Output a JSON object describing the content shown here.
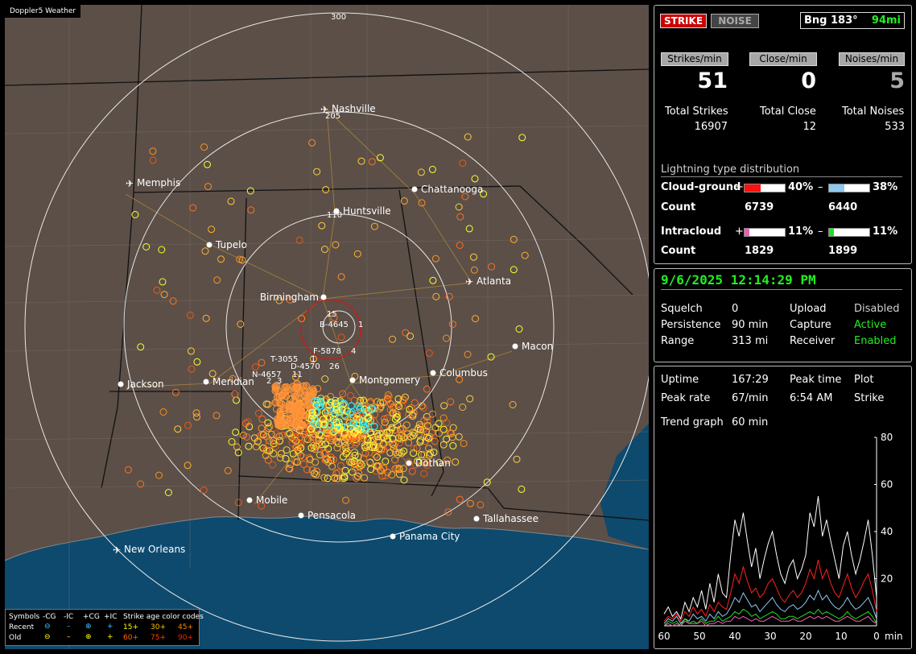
{
  "app": {
    "title": "Doppler5 Weather"
  },
  "status": {
    "strike_label": "STRIKE",
    "noise_label": "NOISE",
    "bearing": "Bng 183°",
    "distance": "94mi"
  },
  "rates": {
    "strikes_label": "Strikes/min",
    "strikes": "51",
    "close_label": "Close/min",
    "close": "0",
    "noises_label": "Noises/min",
    "noises": "5"
  },
  "totals": {
    "strikes_label": "Total Strikes",
    "strikes": "16907",
    "close_label": "Total Close",
    "close": "12",
    "noises_label": "Total Noises",
    "noises": "533"
  },
  "distribution": {
    "title": "Lightning type distribution",
    "cg_label": "Cloud-ground",
    "ic_label": "Intracloud",
    "count_label": "Count",
    "plus": "+",
    "minus": "–",
    "cg_pos_pct": "40%",
    "cg_neg_pct": "38%",
    "cg_pos_count": "6739",
    "cg_neg_count": "6440",
    "ic_pos_pct": "11%",
    "ic_neg_pct": "11%",
    "ic_pos_count": "1829",
    "ic_neg_count": "1899",
    "cg_pos_fill": 0.4,
    "cg_neg_fill": 0.38,
    "ic_pos_fill": 0.11,
    "ic_neg_fill": 0.11,
    "colors": {
      "cg_pos": "#ff1010",
      "cg_neg": "#90c8f0",
      "ic_pos": "#f060b0",
      "ic_neg": "#22dd22"
    }
  },
  "settings": {
    "datetime": "9/6/2025 12:14:29 PM",
    "squelch_label": "Squelch",
    "squelch": "0",
    "persistence_label": "Persistence",
    "persistence": "90 min",
    "range_label": "Range",
    "range": "313 mi",
    "upload_label": "Upload",
    "upload": "Disabled",
    "capture_label": "Capture",
    "capture": "Active",
    "receiver_label": "Receiver",
    "receiver": "Enabled"
  },
  "stats": {
    "uptime_label": "Uptime",
    "uptime": "167:29",
    "peak_time_label": "Peak time",
    "peak_time": "6:54 AM",
    "plot_label": "Plot",
    "plot": "Strike",
    "peak_rate_label": "Peak rate",
    "peak_rate": "67/min",
    "trend_label": "Trend graph",
    "trend": "60 min"
  },
  "map": {
    "ring_labels": [
      "300",
      "205",
      "110",
      "15"
    ],
    "cities": [
      {
        "name": "Nashville",
        "type": "airport"
      },
      {
        "name": "Memphis",
        "type": "airport"
      },
      {
        "name": "Chattanooga",
        "type": "city"
      },
      {
        "name": "Huntsville",
        "type": "city"
      },
      {
        "name": "Tupelo",
        "type": "city"
      },
      {
        "name": "Atlanta",
        "type": "airport"
      },
      {
        "name": "Birmingham",
        "type": "city"
      },
      {
        "name": "Macon",
        "type": "city"
      },
      {
        "name": "Jackson",
        "type": "city"
      },
      {
        "name": "Meridian",
        "type": "city"
      },
      {
        "name": "Montgomery",
        "type": "city"
      },
      {
        "name": "Columbus",
        "type": "city"
      },
      {
        "name": "Dothan",
        "type": "city"
      },
      {
        "name": "Mobile",
        "type": "city"
      },
      {
        "name": "Pensacola",
        "type": "city"
      },
      {
        "name": "Tallahassee",
        "type": "city"
      },
      {
        "name": "Panama City",
        "type": "city"
      },
      {
        "name": "New Orleans",
        "type": "airport"
      }
    ],
    "storms": [
      "B-4645",
      "F-5878",
      "T-3055",
      "D-4570",
      "N-4657"
    ],
    "storm_suffixes": [
      "1",
      "4",
      "1",
      "26",
      "11",
      "2",
      "3"
    ]
  },
  "legend": {
    "symbols_label": "Symbols",
    "cols": [
      "-CG",
      "-IC",
      "+CG",
      "+IC"
    ],
    "age_label": "Strike age color codes",
    "recent_label": "Recent",
    "old_label": "Old",
    "ages_recent": [
      "15+",
      "30+",
      "45+"
    ],
    "ages_old": [
      "60+",
      "75+",
      "90+"
    ],
    "age_colors": [
      "#ffff00",
      "#ffc000",
      "#ff8800",
      "#ff6a00",
      "#ff4000",
      "#ff2000"
    ]
  },
  "chart_data": {
    "type": "line",
    "x_ticks": [
      "60",
      "50",
      "40",
      "30",
      "20",
      "10",
      "0"
    ],
    "x_unit": "min",
    "y_ticks": [
      "80",
      "60",
      "40",
      "20"
    ],
    "ylim": [
      0,
      80
    ],
    "xlim": [
      60,
      0
    ],
    "series": [
      {
        "color": "#ffffff",
        "values": [
          5,
          8,
          4,
          6,
          3,
          10,
          6,
          12,
          8,
          15,
          7,
          18,
          10,
          22,
          14,
          12,
          30,
          45,
          38,
          48,
          36,
          25,
          33,
          20,
          28,
          35,
          40,
          30,
          22,
          18,
          25,
          28,
          20,
          24,
          30,
          48,
          42,
          55,
          38,
          45,
          36,
          28,
          20,
          34,
          40,
          30,
          22,
          28,
          36,
          45,
          30,
          12
        ]
      },
      {
        "color": "#ff2020",
        "values": [
          2,
          4,
          3,
          5,
          2,
          6,
          4,
          8,
          5,
          7,
          4,
          9,
          6,
          10,
          8,
          7,
          14,
          22,
          18,
          25,
          19,
          14,
          16,
          12,
          14,
          18,
          20,
          16,
          12,
          10,
          13,
          15,
          12,
          14,
          18,
          24,
          20,
          28,
          20,
          24,
          18,
          14,
          12,
          17,
          22,
          16,
          12,
          15,
          19,
          22,
          15,
          6
        ]
      },
      {
        "color": "#90c8f0",
        "values": [
          1,
          3,
          2,
          4,
          1,
          3,
          2,
          5,
          3,
          4,
          2,
          5,
          3,
          6,
          4,
          5,
          8,
          12,
          10,
          14,
          11,
          8,
          9,
          6,
          8,
          10,
          12,
          9,
          7,
          6,
          8,
          9,
          7,
          8,
          10,
          13,
          11,
          15,
          11,
          13,
          10,
          8,
          7,
          9,
          12,
          9,
          7,
          8,
          10,
          12,
          8,
          3
        ]
      },
      {
        "color": "#22dd22",
        "values": [
          0,
          2,
          1,
          2,
          0,
          3,
          1,
          2,
          1,
          3,
          1,
          2,
          2,
          4,
          2,
          3,
          4,
          6,
          5,
          7,
          6,
          4,
          5,
          3,
          4,
          5,
          6,
          5,
          3,
          3,
          4,
          4,
          3,
          4,
          5,
          6,
          5,
          7,
          5,
          6,
          5,
          4,
          3,
          4,
          6,
          4,
          3,
          4,
          5,
          6,
          4,
          1
        ]
      },
      {
        "color": "#f060b0",
        "values": [
          0,
          1,
          0,
          1,
          0,
          2,
          1,
          1,
          1,
          2,
          0,
          1,
          1,
          2,
          1,
          2,
          2,
          4,
          3,
          4,
          3,
          2,
          3,
          2,
          2,
          3,
          4,
          3,
          2,
          2,
          2,
          3,
          2,
          2,
          3,
          4,
          3,
          4,
          3,
          4,
          3,
          2,
          2,
          3,
          4,
          3,
          2,
          2,
          3,
          4,
          2,
          1
        ]
      }
    ]
  }
}
